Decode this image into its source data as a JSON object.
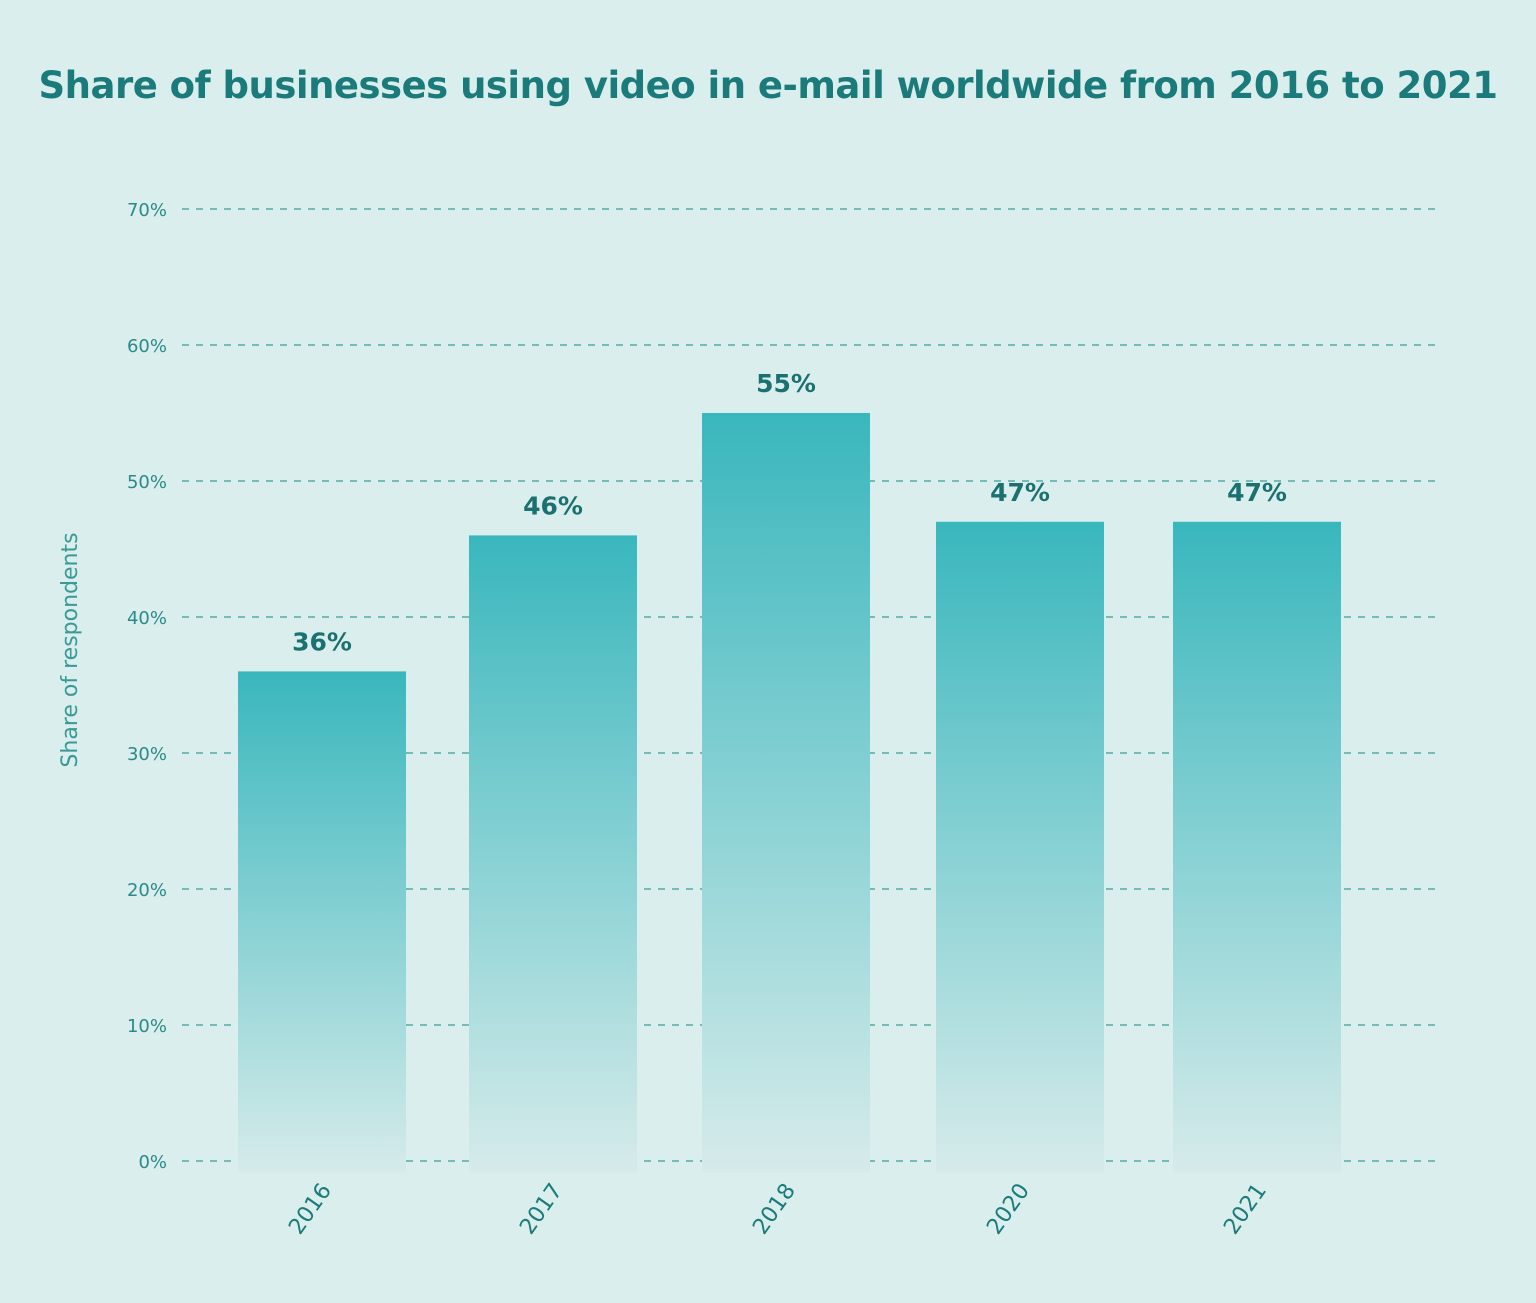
{
  "chart_data": {
    "type": "bar",
    "title": "Share of businesses using video in e-mail worldwide from 2016 to 2021",
    "ylabel": "Share of respondents",
    "xlabel": "",
    "categories": [
      "2016",
      "2017",
      "2018",
      "2020",
      "2021"
    ],
    "values": [
      36,
      46,
      55,
      47,
      47
    ],
    "value_labels": [
      "36%",
      "46%",
      "55%",
      "47%",
      "47%"
    ],
    "ylim": [
      0,
      70
    ],
    "yticks": [
      0,
      10,
      20,
      30,
      40,
      50,
      60,
      70
    ],
    "ytick_labels": [
      "0%",
      "10%",
      "20%",
      "30%",
      "40%",
      "50%",
      "60%",
      "70%"
    ],
    "grid": true,
    "colors": {
      "background": "#d9eeed",
      "bar_top": "#39b7bd",
      "bar_bottom": "#d6ebea",
      "title": "#1b7a7a"
    }
  }
}
